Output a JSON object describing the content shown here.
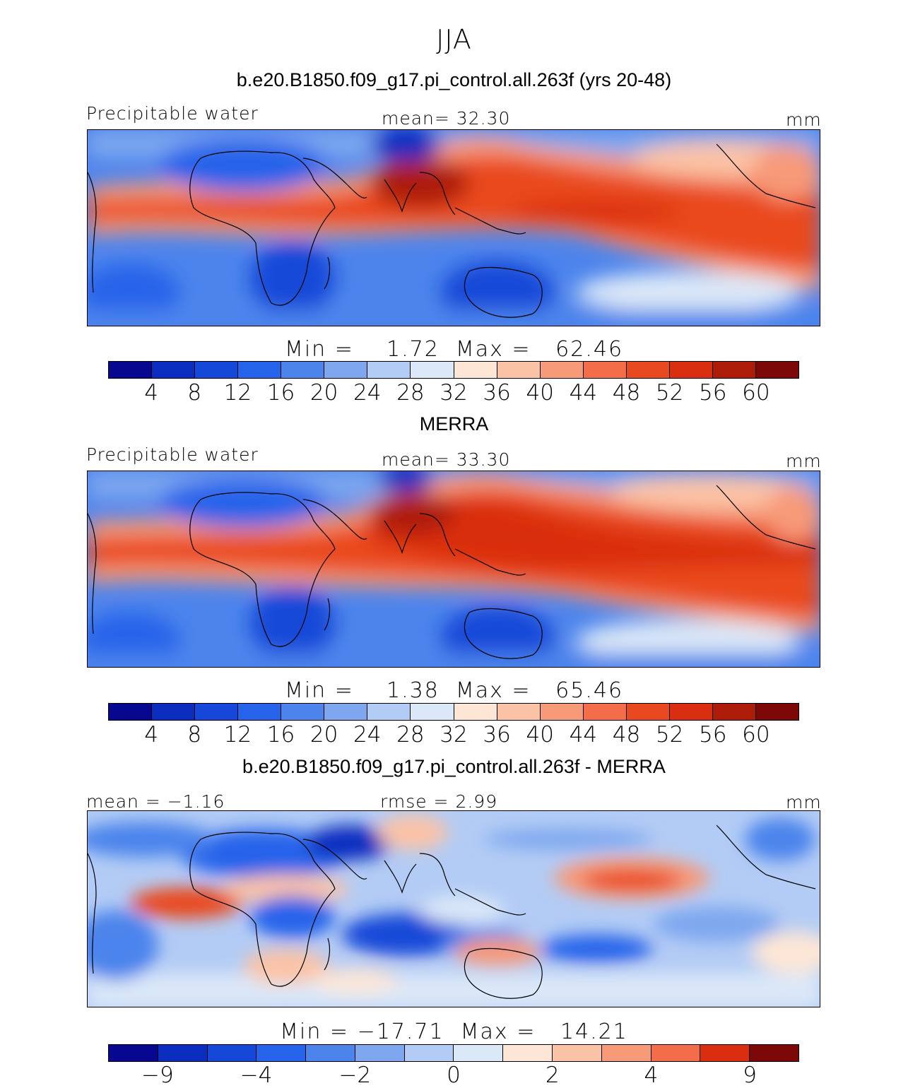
{
  "season": "JJA",
  "panels": [
    {
      "title": "b.e20.B1850.f09_g17.pi_control.all.263f (yrs 20-48)",
      "left_label": "Precipitable water",
      "center_label": "mean=  32.30",
      "units": "mm",
      "stats": "Min =    1.72  Max =   62.46",
      "tick_labels": [
        "4",
        "8",
        "12",
        "16",
        "20",
        "24",
        "28",
        "32",
        "36",
        "40",
        "44",
        "48",
        "52",
        "56",
        "60"
      ]
    },
    {
      "title": "MERRA",
      "left_label": "Precipitable water",
      "center_label": "mean=  33.30",
      "units": "mm",
      "stats": "Min =    1.38  Max =   65.46",
      "tick_labels": [
        "4",
        "8",
        "12",
        "16",
        "20",
        "24",
        "28",
        "32",
        "36",
        "40",
        "44",
        "48",
        "52",
        "56",
        "60"
      ]
    },
    {
      "title": "b.e20.B1850.f09_g17.pi_control.all.263f - MERRA",
      "left_label": "mean =  −1.16",
      "center_label": "rmse =    2.99",
      "units": "mm",
      "stats": "Min = −17.71  Max =   14.21",
      "tick_labels": [
        "−9",
        "",
        "−4",
        "",
        "−2",
        "",
        "0",
        "",
        "2",
        "",
        "4",
        "",
        "9"
      ]
    }
  ],
  "colors": {
    "sequential": [
      "#08078f",
      "#0a2dbf",
      "#1548d8",
      "#2563ea",
      "#4c84ec",
      "#7ea7ef",
      "#b3ccf5",
      "#dbe8f8",
      "#fde6d6",
      "#fbc3a6",
      "#f79a78",
      "#f36d4a",
      "#e9491f",
      "#d92f10",
      "#ad1c08",
      "#7c0808"
    ],
    "diverging": [
      "#08078f",
      "#0a2dbf",
      "#1548d8",
      "#2563ea",
      "#4c84ec",
      "#7ea7ef",
      "#b3ccf5",
      "#dbe8f8",
      "#fde6d6",
      "#fbc3a6",
      "#f79a78",
      "#f36d4a",
      "#d92f10",
      "#7c0808"
    ]
  }
}
